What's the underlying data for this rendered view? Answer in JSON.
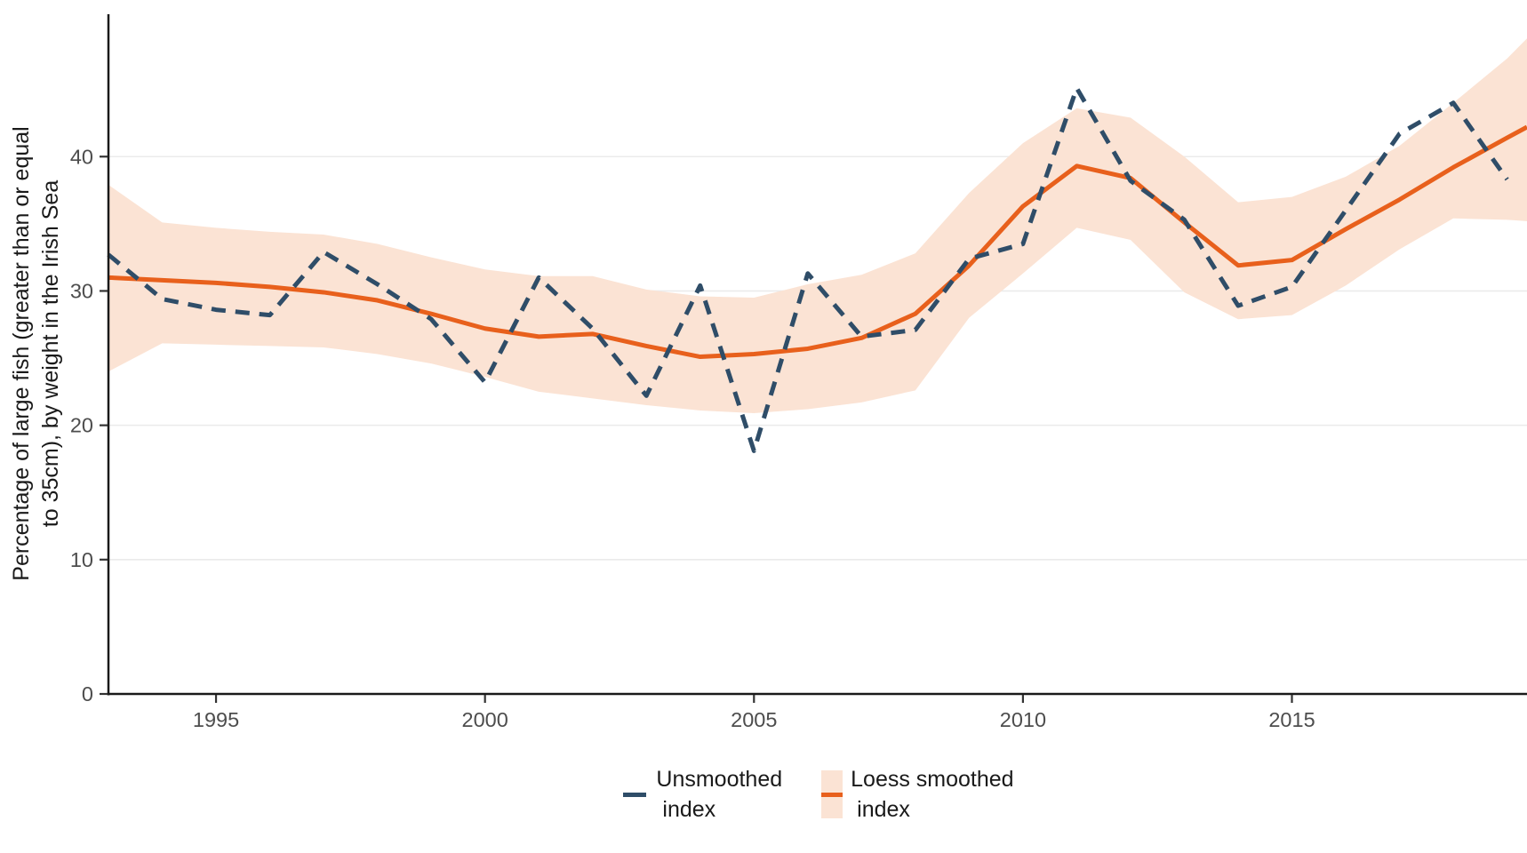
{
  "chart_data": {
    "type": "line",
    "title": "",
    "ylabel_line1": "Percentage of large fish (greater than or equal",
    "ylabel_line2": "to 35cm), by weight in the Irish Sea",
    "xlabel": "",
    "xlim": [
      1993,
      2019.37
    ],
    "ylim": [
      0,
      50.6
    ],
    "grid": "horizontal-major-only",
    "legend_position": "bottom-center",
    "x_tick_years": [
      1995,
      2000,
      2005,
      2010,
      2015
    ],
    "y_ticks": [
      0,
      10,
      20,
      30,
      40
    ],
    "series": [
      {
        "name": "Unsmoothed index",
        "style": "dashed",
        "color": "#2F4D68",
        "x": [
          1993,
          1994,
          1995,
          1996,
          1997,
          1998,
          1999,
          2000,
          2001,
          2002,
          2003,
          2004,
          2005,
          2006,
          2007,
          2008,
          2009,
          2010,
          2011,
          2012,
          2013,
          2014,
          2015,
          2016,
          2017,
          2018,
          2019
        ],
        "values": [
          32.7,
          29.4,
          28.6,
          28.2,
          32.9,
          30.5,
          27.9,
          23.2,
          31.0,
          27.2,
          22.2,
          30.4,
          18.1,
          31.3,
          26.6,
          27.1,
          32.4,
          33.5,
          45.1,
          38.2,
          35.3,
          28.9,
          30.3,
          36.0,
          41.7,
          44.0,
          38.3
        ]
      },
      {
        "name": "Loess smoothed index",
        "style": "solid",
        "color": "#E8601C",
        "x": [
          1993,
          1994,
          1995,
          1996,
          1997,
          1998,
          1999,
          2000,
          2001,
          2002,
          2003,
          2004,
          2005,
          2006,
          2007,
          2008,
          2009,
          2010,
          2011,
          2012,
          2013,
          2014,
          2015,
          2016,
          2017,
          2018,
          2019,
          2019.37
        ],
        "values": [
          31.0,
          30.8,
          30.6,
          30.3,
          29.9,
          29.3,
          28.3,
          27.2,
          26.6,
          26.8,
          25.9,
          25.1,
          25.3,
          25.7,
          26.5,
          28.3,
          31.9,
          36.3,
          39.3,
          38.4,
          35.1,
          31.9,
          32.3,
          34.6,
          36.8,
          39.2,
          41.4,
          42.2
        ],
        "ribbon": {
          "color": "#FBE3D4",
          "upper": [
            37.9,
            35.1,
            34.7,
            34.4,
            34.2,
            33.5,
            32.5,
            31.6,
            31.1,
            31.1,
            30.1,
            29.6,
            29.5,
            30.5,
            31.2,
            32.8,
            37.3,
            41.0,
            43.6,
            42.9,
            40.0,
            36.6,
            37.0,
            38.5,
            40.8,
            44.0,
            47.3,
            48.8
          ],
          "lower": [
            24.0,
            26.1,
            26.0,
            25.9,
            25.8,
            25.3,
            24.6,
            23.6,
            22.5,
            22.0,
            21.5,
            21.1,
            20.9,
            21.2,
            21.7,
            22.6,
            28.0,
            31.3,
            34.7,
            33.8,
            29.9,
            27.9,
            28.2,
            30.4,
            33.1,
            35.4,
            35.3,
            35.2
          ]
        }
      }
    ]
  },
  "style": {
    "axis_color": "#1a1a1a",
    "tick_color": "#333333",
    "tick_label_color": "#4d4d4d",
    "gridline_color": "#ebebeb",
    "background": "#ffffff"
  },
  "legend": {
    "items": [
      {
        "key": "dash",
        "color": "#2F4D68",
        "label_line1": "Unsmoothed",
        "label_line2": "index"
      },
      {
        "key": "ribbon-with-line",
        "fill": "#FBE3D4",
        "line_color": "#E8601C",
        "label_line1": "Loess smoothed",
        "label_line2": "index"
      }
    ]
  }
}
